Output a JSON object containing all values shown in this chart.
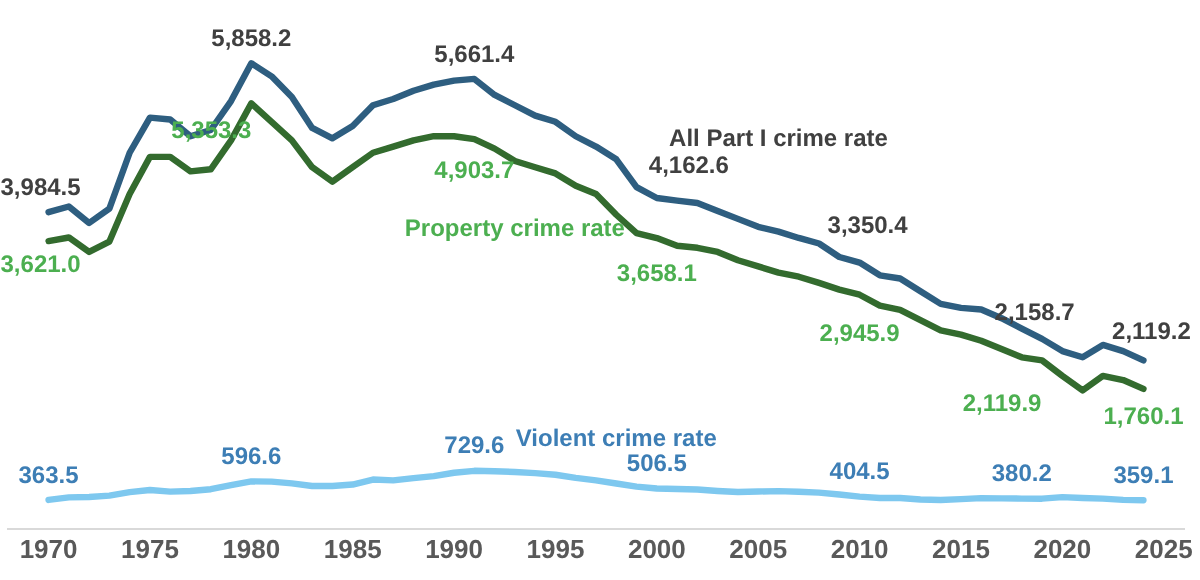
{
  "chart_data": {
    "type": "line",
    "x": [
      1970,
      1971,
      1972,
      1973,
      1974,
      1975,
      1976,
      1977,
      1978,
      1979,
      1980,
      1981,
      1982,
      1983,
      1984,
      1985,
      1986,
      1987,
      1988,
      1989,
      1990,
      1991,
      1992,
      1993,
      1994,
      1995,
      1996,
      1997,
      1998,
      1999,
      2000,
      2001,
      2002,
      2003,
      2004,
      2005,
      2006,
      2007,
      2008,
      2009,
      2010,
      2011,
      2012,
      2013,
      2014,
      2015,
      2016,
      2017,
      2018,
      2019,
      2020,
      2021,
      2022,
      2023,
      2024
    ],
    "xlim": [
      1968,
      2026
    ],
    "xticks": [
      1970,
      1975,
      1980,
      1985,
      1990,
      1995,
      2000,
      2005,
      2010,
      2015,
      2020,
      2025
    ],
    "tick_labels": "x",
    "grid": false,
    "legend": false,
    "marker": "none",
    "series": [
      {
        "name": "All Part I crime rate",
        "color": "#2e5e80",
        "values": [
          3984.5,
          4056,
          3848,
          4030,
          4732,
          5174,
          5150,
          4940,
          5018,
          5382,
          5858.2,
          5694,
          5434,
          5044,
          4914,
          5070,
          5330,
          5408,
          5512,
          5590,
          5640,
          5661.4,
          5460,
          5330,
          5200,
          5122,
          4940,
          4810,
          4650,
          4300,
          4162.6,
          4130,
          4100,
          4000,
          3900,
          3800,
          3740,
          3660,
          3590,
          3420,
          3350.4,
          3190,
          3150,
          2990,
          2830,
          2780,
          2760,
          2650,
          2520,
          2390,
          2236,
          2158.7,
          2314,
          2236,
          2119.2
        ],
        "value_labels": [
          "3,984.5",
          null,
          null,
          null,
          null,
          null,
          null,
          null,
          null,
          null,
          "5,858.2",
          null,
          null,
          null,
          null,
          null,
          null,
          null,
          null,
          null,
          null,
          "5,661.4",
          null,
          null,
          null,
          null,
          null,
          null,
          null,
          null,
          "4,162.6",
          null,
          null,
          null,
          null,
          null,
          null,
          null,
          null,
          null,
          "3,350.4",
          null,
          null,
          null,
          null,
          null,
          null,
          null,
          null,
          null,
          null,
          "2,158.7",
          null,
          null,
          "2,119.2"
        ]
      },
      {
        "name": "Property crime rate",
        "color": "#336b2e",
        "values": [
          3621.0,
          3666,
          3484,
          3614,
          4212,
          4680,
          4680,
          4498,
          4524,
          4888,
          5353.3,
          5122,
          4888,
          4550,
          4368,
          4550,
          4732,
          4810,
          4888,
          4940,
          4940,
          4903.7,
          4784,
          4628,
          4550,
          4472,
          4316,
          4212,
          3952,
          3720,
          3658.1,
          3562,
          3536,
          3484,
          3380,
          3302,
          3224,
          3172,
          3094,
          3010,
          2945.9,
          2808,
          2756,
          2626,
          2496,
          2444,
          2366,
          2262,
          2158,
          2119.9,
          1924,
          1742,
          1924,
          1872,
          1760.1
        ],
        "value_labels": [
          "3,621.0",
          null,
          null,
          null,
          null,
          null,
          null,
          null,
          null,
          null,
          "5,353.3",
          null,
          null,
          null,
          null,
          null,
          null,
          null,
          null,
          null,
          null,
          "4,903.7",
          null,
          null,
          null,
          null,
          null,
          null,
          null,
          null,
          "3,658.1",
          null,
          null,
          null,
          null,
          null,
          null,
          null,
          null,
          null,
          "2,945.9",
          null,
          null,
          null,
          null,
          null,
          null,
          null,
          null,
          "2,119.9",
          null,
          null,
          null,
          null,
          "1,760.1"
        ]
      },
      {
        "name": "Violent crime rate",
        "color": "#7ec8ef",
        "values": [
          363.5,
          396,
          401,
          417,
          461,
          488,
          468,
          476,
          498,
          549,
          596.6,
          594,
          571,
          538,
          539,
          557,
          620,
          610,
          637,
          663,
          705,
          729.6,
          725,
          715,
          700,
          680,
          640,
          610,
          570,
          530,
          506.5,
          500,
          494,
          476,
          463,
          469,
          474,
          467,
          455,
          431,
          404.5,
          387,
          387,
          369,
          362,
          373,
          386,
          383,
          380.2,
          379,
          398,
          387,
          380,
          364,
          359.1
        ],
        "value_labels": [
          "363.5",
          null,
          null,
          null,
          null,
          null,
          null,
          null,
          null,
          null,
          "596.6",
          null,
          null,
          null,
          null,
          null,
          null,
          null,
          null,
          null,
          null,
          "729.6",
          null,
          null,
          null,
          null,
          null,
          null,
          null,
          null,
          "506.5",
          null,
          null,
          null,
          null,
          null,
          null,
          null,
          null,
          null,
          "404.5",
          null,
          null,
          null,
          null,
          null,
          null,
          null,
          "380.2",
          null,
          null,
          null,
          null,
          null,
          "359.1"
        ]
      }
    ]
  }
}
